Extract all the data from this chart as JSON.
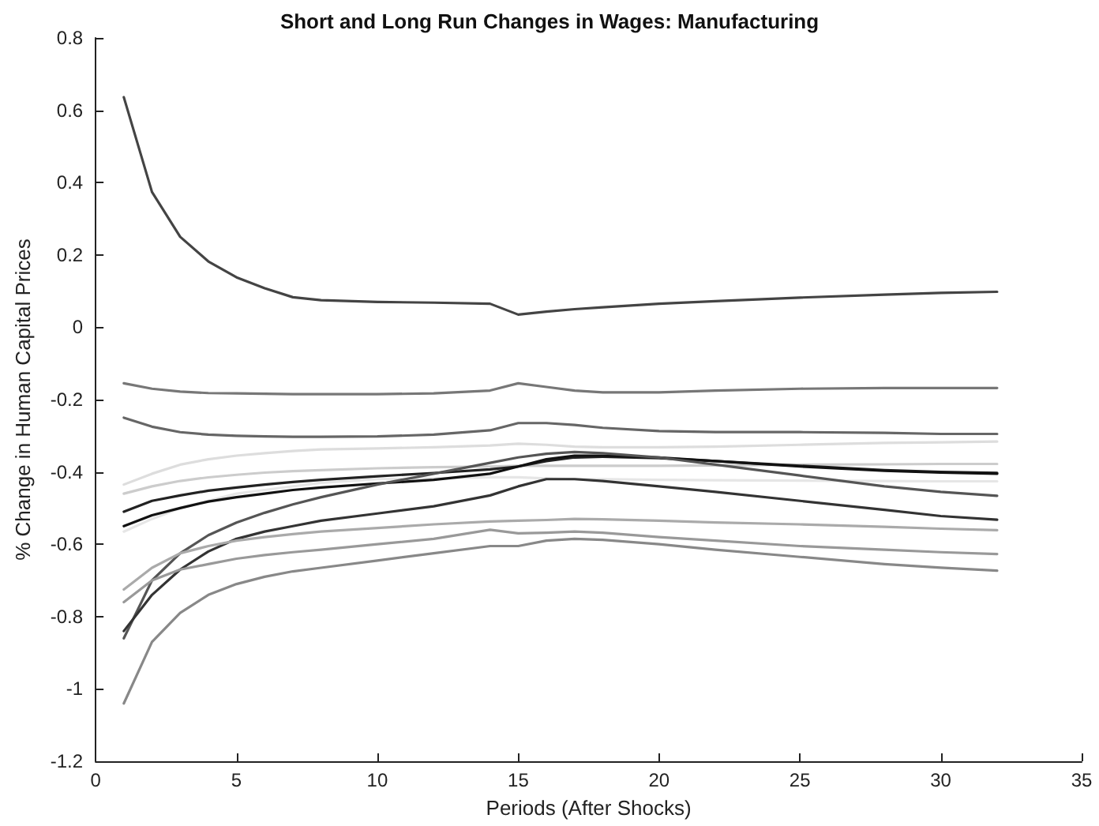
{
  "chart_data": {
    "type": "line",
    "title": "Short and Long Run Changes in Wages: Manufacturing",
    "xlabel": "Periods (After Shocks)",
    "ylabel": "% Change in Human Capital Prices",
    "x": [
      1,
      2,
      3,
      4,
      5,
      6,
      7,
      8,
      10,
      12,
      14,
      15,
      16,
      17,
      18,
      20,
      22,
      25,
      28,
      30,
      32
    ],
    "series": [
      {
        "color": "#444444",
        "values": [
          0.636,
          0.374,
          0.25,
          0.182,
          0.138,
          0.108,
          0.083,
          0.075,
          0.07,
          0.068,
          0.065,
          0.035,
          0.043,
          0.05,
          0.055,
          0.065,
          0.072,
          0.082,
          0.09,
          0.095,
          0.098
        ]
      },
      {
        "color": "#777777",
        "values": [
          -0.155,
          -0.17,
          -0.178,
          -0.182,
          -0.183,
          -0.184,
          -0.185,
          -0.185,
          -0.185,
          -0.183,
          -0.175,
          -0.155,
          -0.165,
          -0.175,
          -0.18,
          -0.18,
          -0.175,
          -0.17,
          -0.168,
          -0.168,
          -0.168
        ]
      },
      {
        "color": "#666666",
        "values": [
          -0.25,
          -0.275,
          -0.29,
          -0.297,
          -0.3,
          -0.302,
          -0.303,
          -0.303,
          -0.302,
          -0.297,
          -0.285,
          -0.265,
          -0.265,
          -0.27,
          -0.278,
          -0.287,
          -0.29,
          -0.29,
          -0.292,
          -0.295,
          -0.295
        ]
      },
      {
        "color": "#dddddd",
        "values": [
          -0.435,
          -0.405,
          -0.38,
          -0.365,
          -0.355,
          -0.348,
          -0.342,
          -0.338,
          -0.335,
          -0.332,
          -0.327,
          -0.322,
          -0.325,
          -0.33,
          -0.332,
          -0.332,
          -0.33,
          -0.325,
          -0.32,
          -0.318,
          -0.316
        ]
      },
      {
        "color": "#cccccc",
        "values": [
          -0.46,
          -0.44,
          -0.425,
          -0.415,
          -0.408,
          -0.402,
          -0.398,
          -0.395,
          -0.39,
          -0.387,
          -0.385,
          -0.383,
          -0.383,
          -0.383,
          -0.383,
          -0.383,
          -0.382,
          -0.38,
          -0.379,
          -0.378,
          -0.378
        ]
      },
      {
        "color": "#e6e6e6",
        "values": [
          -0.565,
          -0.53,
          -0.5,
          -0.48,
          -0.46,
          -0.45,
          -0.44,
          -0.43,
          -0.42,
          -0.418,
          -0.415,
          -0.415,
          -0.418,
          -0.42,
          -0.42,
          -0.422,
          -0.423,
          -0.424,
          -0.425,
          -0.426,
          -0.426
        ]
      },
      {
        "color": "#222222",
        "values": [
          -0.51,
          -0.48,
          -0.465,
          -0.452,
          -0.443,
          -0.435,
          -0.428,
          -0.422,
          -0.412,
          -0.403,
          -0.393,
          -0.385,
          -0.37,
          -0.36,
          -0.358,
          -0.362,
          -0.37,
          -0.383,
          -0.395,
          -0.4,
          -0.403
        ]
      },
      {
        "color": "#111111",
        "values": [
          -0.55,
          -0.52,
          -0.5,
          -0.482,
          -0.47,
          -0.46,
          -0.45,
          -0.443,
          -0.432,
          -0.422,
          -0.405,
          -0.385,
          -0.365,
          -0.355,
          -0.355,
          -0.36,
          -0.37,
          -0.385,
          -0.397,
          -0.402,
          -0.405
        ]
      },
      {
        "color": "#555555",
        "values": [
          -0.86,
          -0.7,
          -0.625,
          -0.575,
          -0.54,
          -0.513,
          -0.49,
          -0.47,
          -0.435,
          -0.405,
          -0.375,
          -0.36,
          -0.35,
          -0.345,
          -0.348,
          -0.36,
          -0.38,
          -0.41,
          -0.44,
          -0.455,
          -0.466
        ]
      },
      {
        "color": "#333333",
        "values": [
          -0.84,
          -0.74,
          -0.67,
          -0.62,
          -0.585,
          -0.565,
          -0.55,
          -0.535,
          -0.515,
          -0.495,
          -0.465,
          -0.44,
          -0.42,
          -0.42,
          -0.425,
          -0.44,
          -0.455,
          -0.48,
          -0.505,
          -0.522,
          -0.532
        ]
      },
      {
        "color": "#aaaaaa",
        "values": [
          -0.725,
          -0.665,
          -0.625,
          -0.605,
          -0.59,
          -0.58,
          -0.572,
          -0.565,
          -0.555,
          -0.545,
          -0.537,
          -0.535,
          -0.533,
          -0.53,
          -0.531,
          -0.535,
          -0.54,
          -0.545,
          -0.552,
          -0.557,
          -0.561
        ]
      },
      {
        "color": "#999999",
        "values": [
          -0.76,
          -0.7,
          -0.67,
          -0.655,
          -0.64,
          -0.63,
          -0.622,
          -0.615,
          -0.6,
          -0.585,
          -0.56,
          -0.57,
          -0.568,
          -0.565,
          -0.568,
          -0.58,
          -0.59,
          -0.605,
          -0.615,
          -0.622,
          -0.627
        ]
      },
      {
        "color": "#888888",
        "values": [
          -1.04,
          -0.87,
          -0.79,
          -0.74,
          -0.71,
          -0.69,
          -0.675,
          -0.665,
          -0.645,
          -0.625,
          -0.605,
          -0.605,
          -0.59,
          -0.585,
          -0.588,
          -0.6,
          -0.615,
          -0.635,
          -0.655,
          -0.665,
          -0.673
        ]
      }
    ],
    "xlim": [
      0,
      35
    ],
    "xticks": [
      0,
      5,
      10,
      15,
      20,
      25,
      30,
      35
    ],
    "ylim": [
      -1.2,
      0.8
    ],
    "yticks": [
      -1.2,
      -1,
      -0.8,
      -0.6,
      -0.4,
      -0.2,
      0,
      0.2,
      0.4,
      0.6,
      0.8
    ],
    "grid": false,
    "marker": "none",
    "line_style": "solid"
  }
}
